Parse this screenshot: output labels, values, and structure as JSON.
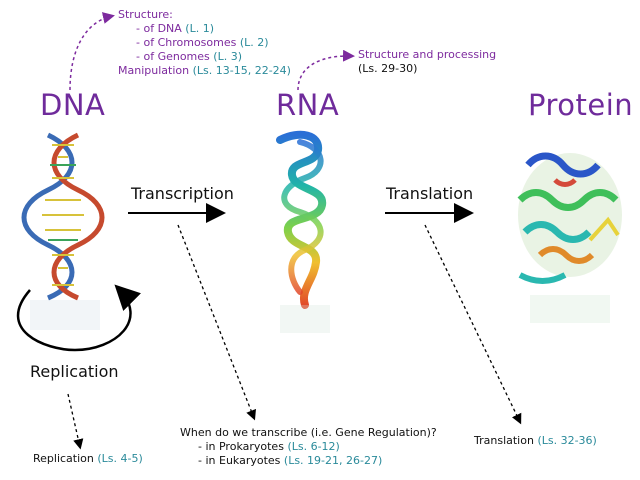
{
  "labels": {
    "dna": "DNA",
    "rna": "RNA",
    "protein": "Protein",
    "transcription": "Transcription",
    "translation": "Translation",
    "replication": "Replication"
  },
  "dna_notes": {
    "structure": "Structure:",
    "of_dna": "- of DNA",
    "of_dna_ref": "(L. 1)",
    "of_chromosomes": "- of Chromosomes",
    "of_chromosomes_ref": "(L. 2)",
    "of_genomes": "- of Genomes",
    "of_genomes_ref": "(L. 3)",
    "manipulation": "Manipulation",
    "manipulation_ref": "(Ls. 13-15, 22-24)"
  },
  "rna_notes": {
    "structure_processing": "Structure and processing",
    "ref": "(Ls. 29-30)"
  },
  "replication_note": {
    "text": "Replication",
    "ref": "(Ls. 4-5)"
  },
  "transcription_note": {
    "question": "When do we transcribe (i.e. Gene Regulation)?",
    "prokaryotes": "- in Prokaryotes",
    "prokaryotes_ref": "(Ls. 6-12)",
    "eukaryotes": "- in Eukaryotes",
    "eukaryotes_ref": "(Ls. 19-21, 26-27)"
  },
  "translation_note": {
    "text": "Translation",
    "ref": "(Ls. 32-36)"
  },
  "colors": {
    "title_purple": "#6f2b9b",
    "note_purple": "#7d2a9e",
    "ref_teal": "#2a8a9a"
  }
}
